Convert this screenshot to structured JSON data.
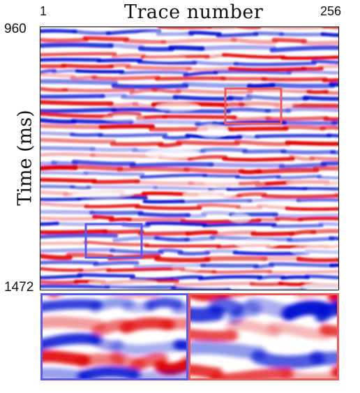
{
  "x_axis": {
    "title": "Trace number",
    "start": "1",
    "end": "256"
  },
  "y_axis": {
    "title": "Time (ms)",
    "start": "960",
    "end": "1472"
  },
  "colors": {
    "positive": "#e00000",
    "negative": "#0010d0",
    "zero": "#ffffff",
    "blue_box": "#5a5aee",
    "red_box": "#ee5a5a"
  },
  "colormap": "red-white-blue seismic",
  "zoom_panels": [
    "blue-box-region",
    "red-box-region"
  ]
}
